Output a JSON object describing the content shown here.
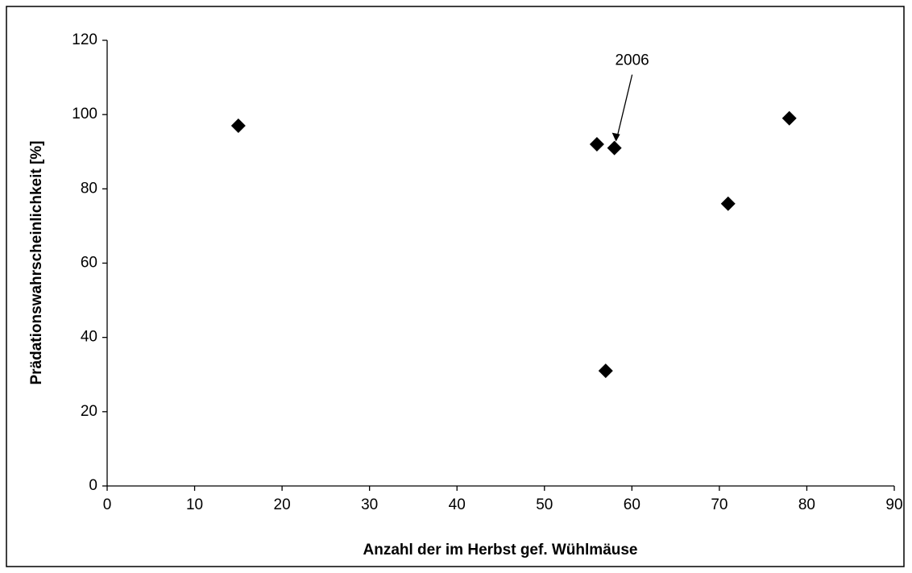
{
  "chart_data": {
    "type": "scatter",
    "xlabel": "Anzahl der im Herbst gef. Wühlmäuse",
    "ylabel": "Prädationswahrscheinlichkeit [%]",
    "x": [
      15,
      56,
      58,
      57,
      71,
      78
    ],
    "values": [
      97,
      92,
      91,
      31,
      76,
      99
    ],
    "color": "#000000",
    "xlim": [
      0,
      90
    ],
    "xticks": [
      0,
      10,
      20,
      30,
      40,
      50,
      60,
      70,
      80,
      90
    ],
    "ylim": [
      0,
      120
    ],
    "yticks": [
      0,
      20,
      40,
      60,
      80,
      100,
      120
    ],
    "grid": false,
    "annotations": [
      {
        "text": "2006",
        "x": 58,
        "y": 91
      }
    ]
  }
}
